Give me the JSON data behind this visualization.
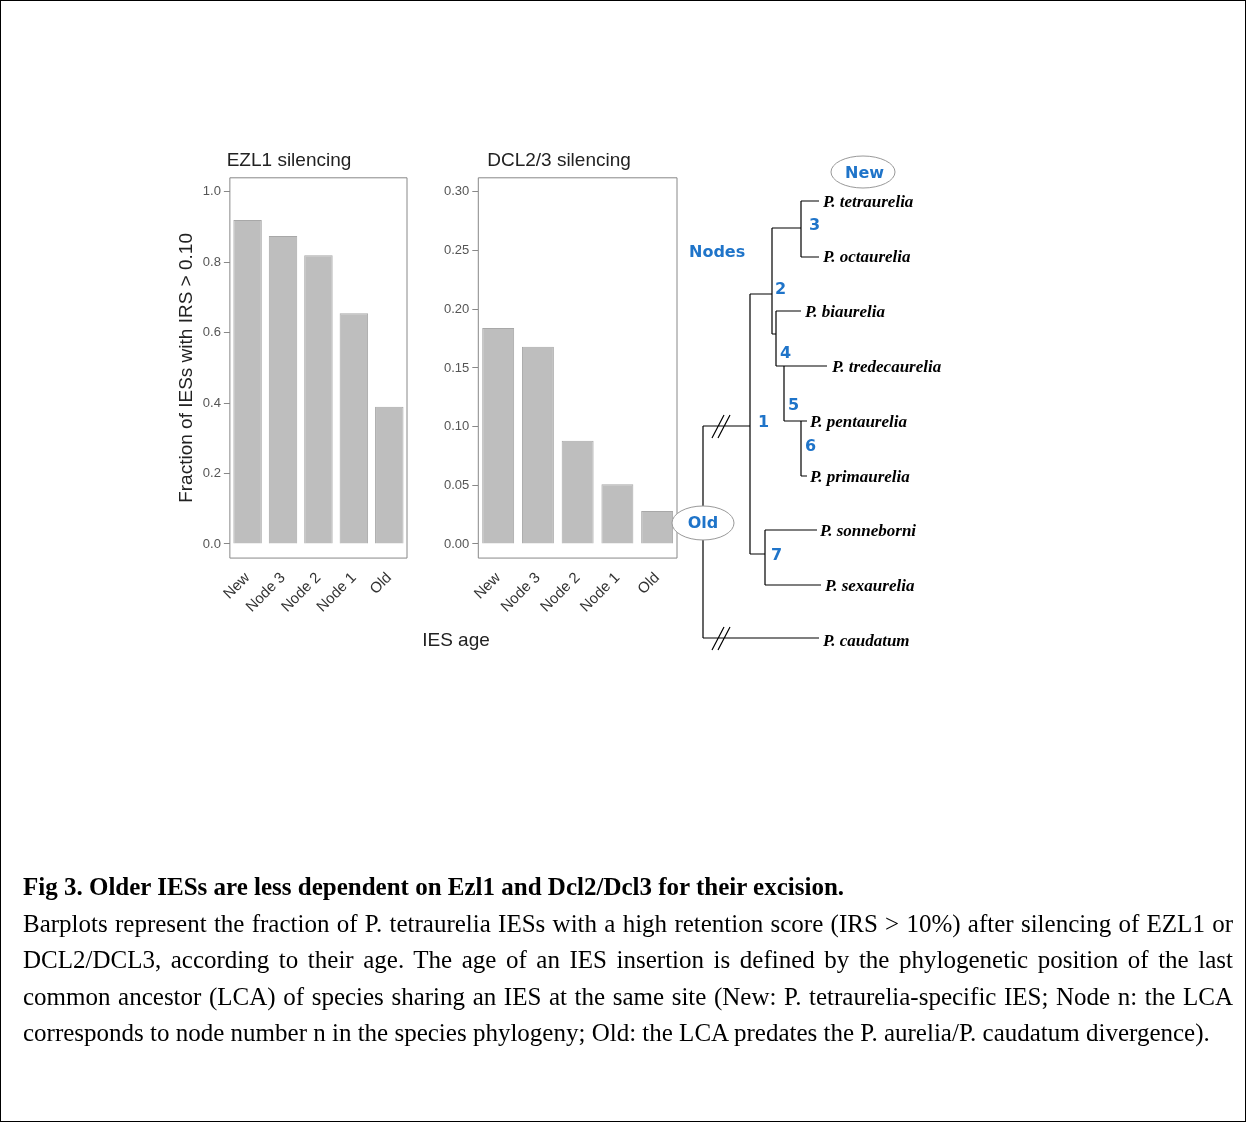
{
  "chart_data": [
    {
      "type": "bar",
      "title": "EZL1 silencing",
      "ylabel": "Fraction of IESs with IRS > 0.10",
      "xlabel": "IES age",
      "categories": [
        "New",
        "Node 3",
        "Node 2",
        "Node 1",
        "Old"
      ],
      "values": [
        0.92,
        0.875,
        0.82,
        0.655,
        0.39
      ],
      "color": "#bebebe",
      "ylim": [
        -0.04,
        1.04
      ],
      "yticks": [
        {
          "value": 0,
          "label": "0.0"
        },
        {
          "value": 0.2,
          "label": "0.2"
        },
        {
          "value": 0.4,
          "label": "0.4"
        },
        {
          "value": 0.6,
          "label": "0.6"
        },
        {
          "value": 0.8,
          "label": "0.8"
        },
        {
          "value": 1,
          "label": "1.0"
        }
      ],
      "grid": false
    },
    {
      "type": "bar",
      "title": "DCL2/3 silencing",
      "categories": [
        "New",
        "Node 3",
        "Node 2",
        "Node 1",
        "Old"
      ],
      "values": [
        0.184,
        0.168,
        0.088,
        0.051,
        0.028
      ],
      "color": "#bebebe",
      "ylim": [
        -0.012,
        0.312
      ],
      "yticks": [
        {
          "value": 0,
          "label": "0.00"
        },
        {
          "value": 0.05,
          "label": "0.05"
        },
        {
          "value": 0.1,
          "label": "0.10"
        },
        {
          "value": 0.15,
          "label": "0.15"
        },
        {
          "value": 0.2,
          "label": "0.20"
        },
        {
          "value": 0.25,
          "label": "0.25"
        },
        {
          "value": 0.3,
          "label": "0.30"
        }
      ],
      "grid": false
    },
    {
      "type": "other",
      "annotations": [
        "New",
        "Nodes",
        "Old",
        "P. tetraurelia",
        "P. octaurelia",
        "P. biaurelia",
        "P. tredecaurelia",
        "P. pentaurelia",
        "P. primaurelia",
        "P. sonneborni",
        "P. sexaurelia",
        "P. caudatum",
        "1",
        "2",
        "3",
        "4",
        "5",
        "6",
        "7"
      ]
    },
    {
      "type": "other",
      "annotations": [
        "Fig 3. Older IESs are less dependent on Ezl1 and Dcl2/Dcl3 for their excision.",
        "Barplots represent the fraction of P. tetraurelia IESs with a high retention score (IRS > 10%) after silencing of EZL1 or DCL2/DCL3, according to their age. The age of an IES insertion is defined by the phylogenetic position of the last common ancestor (LCA) of species sharing an IES at the same site (New: P. tetraurelia-specific IES; Node n: the LCA corresponds to node number n in the species phylogeny; Old: the LCA predates the P. aurelia/P. caudatum divergence)."
      ]
    }
  ]
}
